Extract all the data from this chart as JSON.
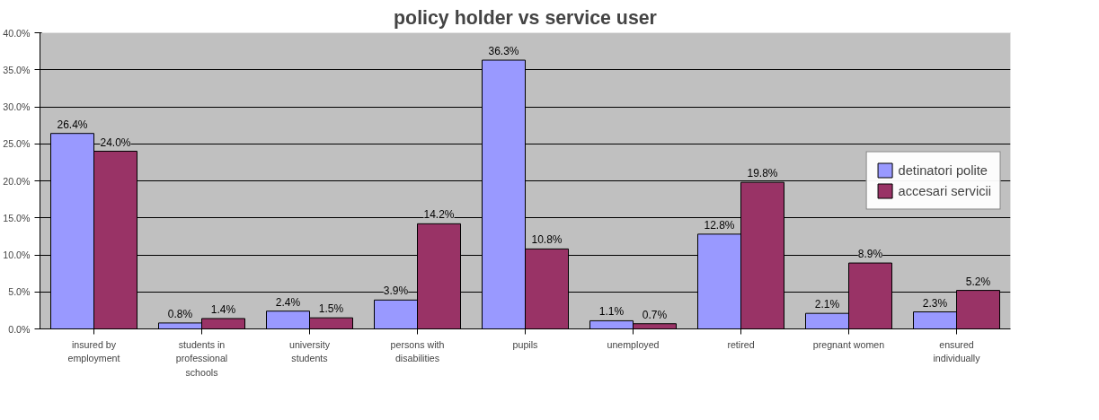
{
  "chart_data": {
    "type": "bar",
    "title": "policy holder vs service user",
    "categories": [
      "insured by employment",
      "students in professional schools",
      "university students",
      "persons with disabilities",
      "pupils",
      "unemployed",
      "retired",
      "pregnant women",
      "ensured individually"
    ],
    "series": [
      {
        "name": "detinatori polite",
        "color": "#9999ff",
        "values": [
          26.4,
          0.8,
          2.4,
          3.9,
          36.3,
          1.1,
          12.8,
          2.1,
          2.3
        ],
        "value_labels": [
          "26.4%",
          "0.8%",
          "2.4%",
          "3.9%",
          "36.3%",
          "1.1%",
          "12.8%",
          "2.1%",
          "2.3%"
        ]
      },
      {
        "name": "accesari servicii",
        "color": "#993366",
        "values": [
          24.0,
          1.4,
          1.5,
          14.2,
          10.8,
          0.7,
          19.8,
          8.9,
          5.2
        ],
        "value_labels": [
          "24.0%",
          "1.4%",
          "1.5%",
          "14.2%",
          "10.8%",
          "0.7%",
          "19.8%",
          "8.9%",
          "5.2%"
        ]
      }
    ],
    "ylim": [
      0,
      40
    ],
    "yticks": [
      {
        "value": 0,
        "label": "0.0%"
      },
      {
        "value": 5,
        "label": "5.0%"
      },
      {
        "value": 10,
        "label": "10.0%"
      },
      {
        "value": 15,
        "label": "15.0%"
      },
      {
        "value": 20,
        "label": "20.0%"
      },
      {
        "value": 25,
        "label": "25.0%"
      },
      {
        "value": 30,
        "label": "30.0%"
      },
      {
        "value": 35,
        "label": "35.0%"
      },
      {
        "value": 40,
        "label": "40.0%"
      }
    ],
    "grid": "y",
    "legend": "right"
  }
}
